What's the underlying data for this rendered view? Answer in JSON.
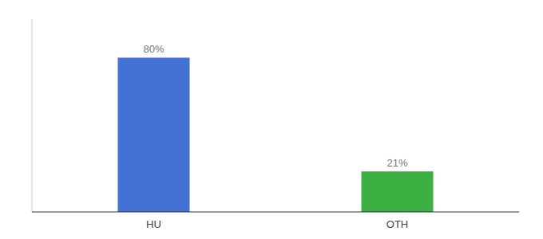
{
  "chart_data": {
    "type": "bar",
    "categories": [
      "HU",
      "OTH"
    ],
    "values": [
      80,
      21
    ],
    "value_labels": [
      "80%",
      "21%"
    ],
    "colors": [
      "#4472d4",
      "#3cb043"
    ],
    "ylim": [
      0,
      100
    ],
    "data_labels": true,
    "tick_labels": "x",
    "grid": false
  }
}
